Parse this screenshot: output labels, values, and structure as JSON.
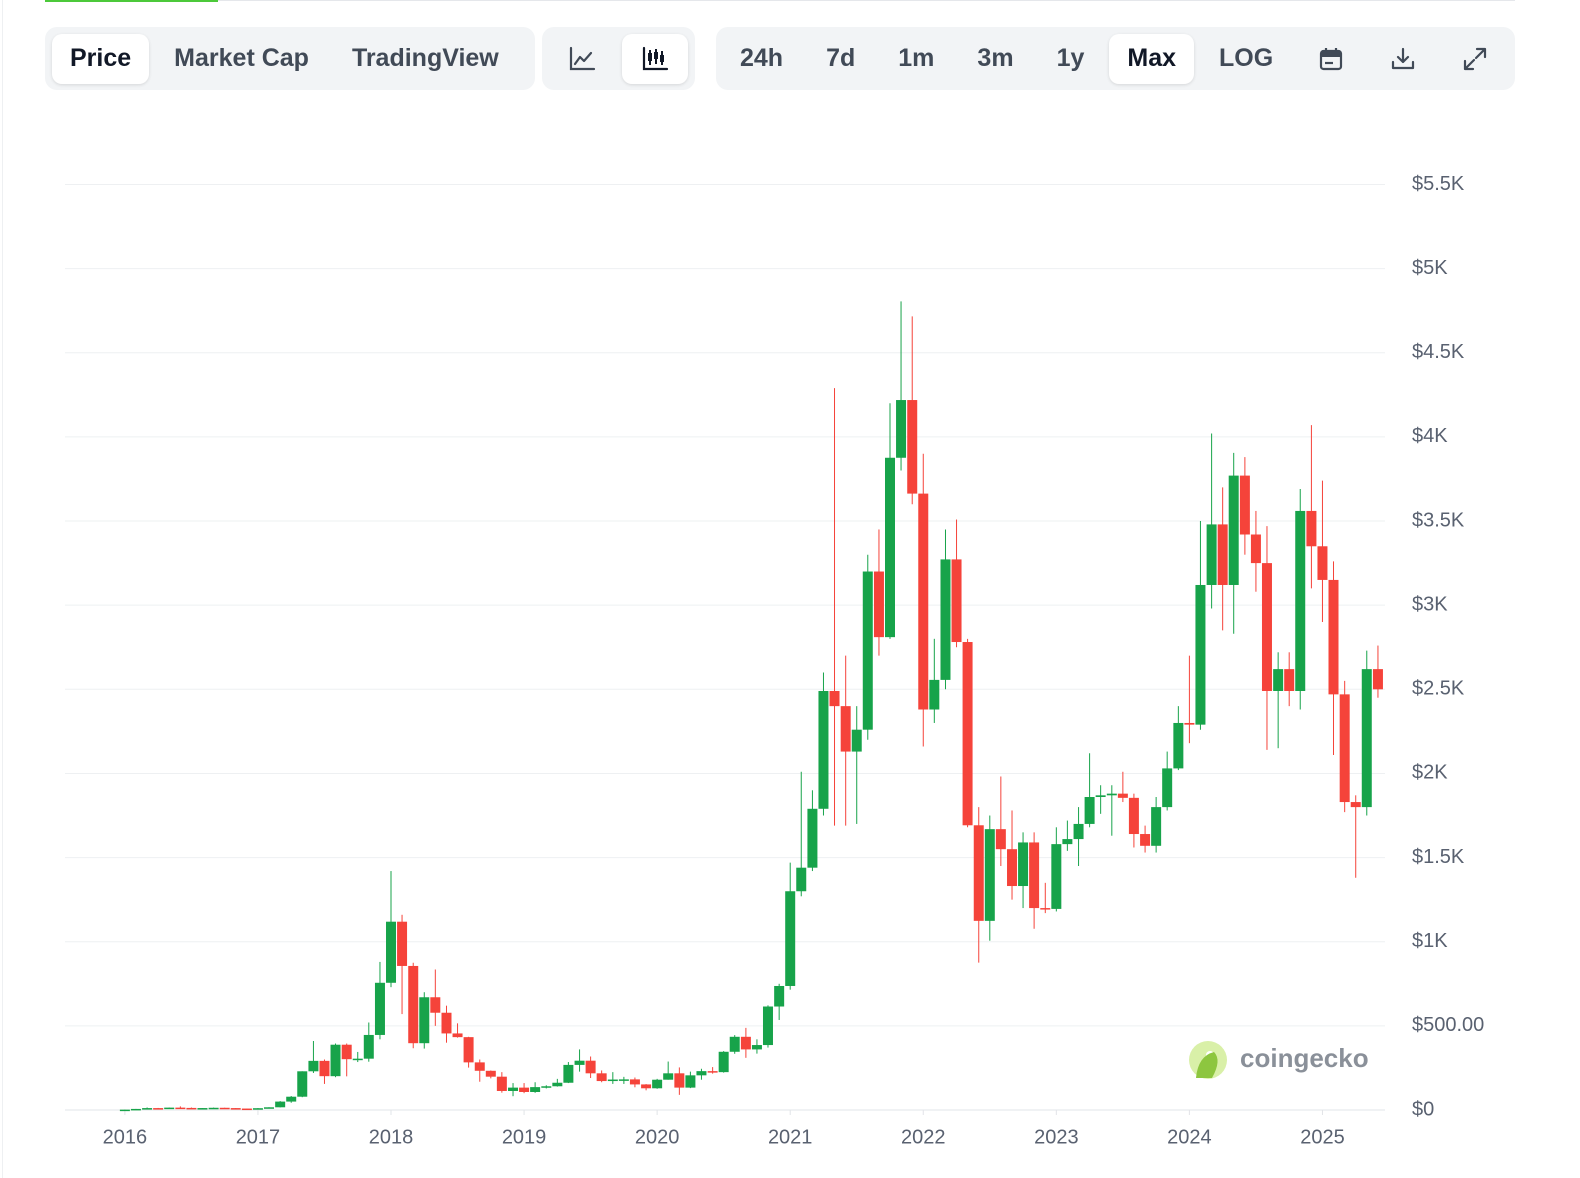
{
  "toolbar": {
    "tabs": [
      "Price",
      "Market Cap",
      "TradingView"
    ],
    "active_tab": 0,
    "ranges": [
      "24h",
      "7d",
      "1m",
      "3m",
      "1y",
      "Max",
      "LOG"
    ],
    "active_range": 5
  },
  "chart_data": {
    "type": "candlestick",
    "up_color": "#17a34a",
    "down_color": "#f5433a",
    "annotations": [
      "coingecko"
    ],
    "xlim": [
      2015.55,
      2025.47
    ],
    "xticks": [
      2016,
      2017,
      2018,
      2019,
      2020,
      2021,
      2022,
      2023,
      2024,
      2025
    ],
    "ylim": [
      0,
      5800
    ],
    "yticks": [
      {
        "value": 0,
        "label": "$0"
      },
      {
        "value": 500,
        "label": "$500.00"
      },
      {
        "value": 1000,
        "label": "$1K"
      },
      {
        "value": 1500,
        "label": "$1.5K"
      },
      {
        "value": 2000,
        "label": "$2K"
      },
      {
        "value": 2500,
        "label": "$2.5K"
      },
      {
        "value": 3000,
        "label": "$3K"
      },
      {
        "value": 3500,
        "label": "$3.5K"
      },
      {
        "value": 4000,
        "label": "$4K"
      },
      {
        "value": 4500,
        "label": "$4.5K"
      },
      {
        "value": 5000,
        "label": "$5K"
      },
      {
        "value": 5500,
        "label": "$5.5K"
      }
    ],
    "grid": true,
    "x": [
      2016,
      2016.083,
      2016.167,
      2016.25,
      2016.333,
      2016.417,
      2016.5,
      2016.583,
      2016.667,
      2016.75,
      2016.833,
      2016.917,
      2017,
      2017.083,
      2017.167,
      2017.25,
      2017.333,
      2017.417,
      2017.5,
      2017.583,
      2017.667,
      2017.75,
      2017.833,
      2017.917,
      2018,
      2018.083,
      2018.167,
      2018.25,
      2018.333,
      2018.417,
      2018.5,
      2018.583,
      2018.667,
      2018.75,
      2018.833,
      2018.917,
      2019,
      2019.083,
      2019.167,
      2019.25,
      2019.333,
      2019.417,
      2019.5,
      2019.583,
      2019.667,
      2019.75,
      2019.833,
      2019.917,
      2020,
      2020.083,
      2020.167,
      2020.25,
      2020.333,
      2020.417,
      2020.5,
      2020.583,
      2020.667,
      2020.75,
      2020.833,
      2020.917,
      2021,
      2021.083,
      2021.167,
      2021.25,
      2021.333,
      2021.417,
      2021.5,
      2021.583,
      2021.667,
      2021.75,
      2021.833,
      2021.917,
      2022,
      2022.083,
      2022.167,
      2022.25,
      2022.333,
      2022.417,
      2022.5,
      2022.583,
      2022.667,
      2022.75,
      2022.833,
      2022.917,
      2023,
      2023.083,
      2023.167,
      2023.25,
      2023.333,
      2023.417,
      2023.5,
      2023.583,
      2023.667,
      2023.75,
      2023.833,
      2023.917,
      2024,
      2024.083,
      2024.167,
      2024.25,
      2024.333,
      2024.417,
      2024.5,
      2024.583,
      2024.667,
      2024.75,
      2024.833,
      2024.917,
      2025,
      2025.083,
      2025.167,
      2025.25,
      2025.333,
      2025.417
    ],
    "open": [
      0.93,
      2.2,
      6.4,
      11.4,
      8.8,
      14.1,
      12.4,
      11.3,
      11.6,
      13.2,
      11.4,
      8.6,
      8,
      10.7,
      16.1,
      50,
      79,
      230,
      292,
      201,
      388,
      302,
      305,
      446,
      756,
      1119,
      856,
      397,
      670,
      578,
      455,
      433,
      283,
      233,
      198,
      113,
      133,
      107,
      136,
      141,
      162,
      268,
      293,
      218,
      172,
      181,
      182,
      152,
      129,
      180,
      218,
      133,
      206,
      231,
      225,
      346,
      435,
      360,
      386,
      615,
      737,
      1300,
      1440,
      1790,
      2490,
      2400,
      2130,
      2260,
      3200,
      2810,
      3876,
      4219,
      3663,
      2380,
      2556,
      3272,
      2781,
      1692,
      1124,
      1669,
      1550,
      1331,
      1590,
      1200,
      1195,
      1580,
      1610,
      1700,
      1860,
      1870,
      1880,
      1855,
      1640,
      1570,
      1800,
      2030,
      2300,
      2290,
      3120,
      3480,
      3120,
      3770,
      3420,
      3250,
      2490,
      2620,
      2490,
      3560,
      3350,
      3150,
      2470,
      1830,
      1800,
      2620
    ],
    "high": [
      2.8,
      6.5,
      15,
      12.3,
      14.8,
      21.5,
      14.9,
      11.9,
      14.3,
      13.4,
      11.7,
      8.8,
      11.3,
      16.5,
      53,
      83,
      230,
      410,
      300,
      395,
      395,
      345,
      520,
      880,
      1420,
      1160,
      875,
      700,
      835,
      620,
      515,
      435,
      300,
      235,
      225,
      160,
      160,
      165,
      147,
      185,
      285,
      360,
      318,
      235,
      225,
      197,
      193,
      154,
      185,
      288,
      253,
      228,
      245,
      255,
      350,
      445,
      488,
      420,
      622,
      750,
      1470,
      2010,
      1900,
      2600,
      4290,
      2700,
      2400,
      3300,
      3450,
      4200,
      4805,
      4716,
      3900,
      2800,
      3450,
      3509,
      2800,
      1800,
      1750,
      1982,
      1780,
      1650,
      1650,
      1350,
      1680,
      1720,
      1800,
      2120,
      1930,
      1930,
      2010,
      1880,
      1690,
      1860,
      2130,
      2400,
      2700,
      3500,
      4020,
      3700,
      3905,
      3880,
      3560,
      3470,
      2720,
      2720,
      3690,
      4070,
      3740,
      3260,
      2550,
      1870,
      2730,
      2760
    ],
    "low": [
      0.9,
      2.2,
      6.2,
      6.9,
      8.2,
      11,
      10.5,
      9.6,
      11,
      10.2,
      7.8,
      6.9,
      7.9,
      10.4,
      15.6,
      43,
      76,
      220,
      155,
      195,
      200,
      285,
      287,
      420,
      730,
      570,
      367,
      365,
      500,
      400,
      430,
      252,
      168,
      188,
      103,
      82,
      100,
      102,
      128,
      139,
      160,
      228,
      190,
      165,
      155,
      155,
      135,
      117,
      126,
      180,
      90,
      130,
      180,
      216,
      222,
      334,
      310,
      335,
      371,
      535,
      715,
      1270,
      1420,
      1750,
      1690,
      1690,
      1700,
      2200,
      2700,
      2800,
      3800,
      3600,
      2160,
      2300,
      2500,
      2750,
      1680,
      876,
      1006,
      1450,
      1250,
      1200,
      1077,
      1170,
      1180,
      1540,
      1450,
      1680,
      1760,
      1630,
      1830,
      1560,
      1530,
      1530,
      1780,
      2020,
      2180,
      2260,
      2980,
      2850,
      2830,
      3300,
      3080,
      2140,
      2150,
      2400,
      2380,
      3100,
      2900,
      2110,
      1770,
      1380,
      1750,
      2450
    ],
    "close": [
      2.2,
      6.4,
      11.4,
      8.8,
      14.1,
      12.4,
      11.3,
      11.6,
      13.2,
      11.4,
      8.6,
      8,
      10.7,
      16.1,
      50,
      79,
      230,
      292,
      201,
      388,
      302,
      305,
      446,
      756,
      1119,
      856,
      397,
      670,
      578,
      455,
      433,
      283,
      233,
      198,
      113,
      133,
      107,
      136,
      141,
      162,
      268,
      293,
      218,
      172,
      181,
      182,
      152,
      129,
      180,
      218,
      133,
      206,
      231,
      225,
      346,
      435,
      360,
      386,
      615,
      737,
      1300,
      1440,
      1790,
      2490,
      2400,
      2130,
      2260,
      3200,
      2810,
      3876,
      4219,
      3663,
      2380,
      2556,
      3272,
      2781,
      1692,
      1124,
      1669,
      1550,
      1331,
      1590,
      1200,
      1195,
      1580,
      1610,
      1700,
      1860,
      1870,
      1880,
      1855,
      1640,
      1570,
      1800,
      2030,
      2300,
      2290,
      3120,
      3480,
      3120,
      3770,
      3420,
      3250,
      2490,
      2620,
      2490,
      3560,
      3350,
      3150,
      2470,
      1830,
      1800,
      2620,
      2500
    ]
  }
}
